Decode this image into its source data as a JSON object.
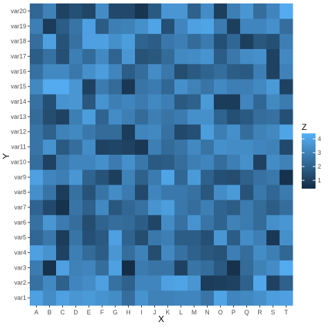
{
  "chart_data": {
    "type": "heatmap",
    "title": "",
    "xlabel": "X",
    "ylabel": "Y",
    "x": [
      "A",
      "B",
      "C",
      "D",
      "E",
      "F",
      "G",
      "H",
      "I",
      "J",
      "K",
      "L",
      "M",
      "N",
      "O",
      "P",
      "Q",
      "R",
      "S",
      "T"
    ],
    "y": [
      "var1",
      "var2",
      "var3",
      "var4",
      "var5",
      "var6",
      "var7",
      "var8",
      "var9",
      "var10",
      "var11",
      "var12",
      "var13",
      "var14",
      "var15",
      "var16",
      "var17",
      "var18",
      "var19",
      "var20"
    ],
    "z": [
      [
        3.9,
        3.3,
        3.9,
        3.6,
        3.7,
        3.5,
        3.3,
        2.4,
        3.5,
        3.0,
        3.0,
        3.1,
        3.1,
        2.6,
        4.0,
        3.1,
        3.2,
        3.4,
        3.8,
        3.9
      ],
      [
        2.5,
        3.2,
        2.0,
        3.1,
        3.3,
        3.9,
        2.5,
        2.0,
        3.1,
        3.1,
        3.9,
        4.0,
        3.6,
        0.9,
        1.0,
        1.1,
        2.0,
        4.1,
        1.1,
        2.0
      ],
      [
        2.8,
        0.6,
        3.9,
        3.0,
        3.1,
        2.4,
        3.9,
        0.5,
        2.8,
        2.6,
        2.6,
        1.1,
        2.6,
        2.4,
        1.8,
        0.6,
        2.3,
        3.0,
        3.3,
        4.2
      ],
      [
        3.9,
        3.5,
        1.1,
        2.9,
        2.3,
        1.9,
        3.6,
        2.4,
        3.0,
        1.4,
        3.2,
        2.5,
        2.0,
        1.7,
        1.6,
        2.9,
        2.4,
        3.3,
        2.9,
        2.2
      ],
      [
        2.2,
        2.7,
        0.9,
        2.6,
        1.5,
        1.8,
        3.9,
        2.1,
        1.4,
        2.7,
        2.9,
        1.9,
        1.9,
        1.5,
        3.6,
        1.9,
        3.3,
        2.9,
        0.8,
        3.4
      ],
      [
        2.5,
        3.6,
        2.8,
        2.4,
        1.4,
        2.1,
        2.4,
        2.3,
        1.9,
        1.2,
        3.3,
        2.5,
        3.5,
        2.6,
        2.1,
        3.0,
        2.8,
        2.3,
        3.4,
        3.6
      ],
      [
        2.1,
        1.3,
        0.6,
        2.6,
        2.0,
        3.2,
        1.7,
        2.2,
        2.5,
        3.5,
        3.8,
        2.7,
        2.4,
        2.9,
        2.1,
        1.9,
        2.8,
        2.3,
        1.9,
        2.4
      ],
      [
        3.4,
        2.6,
        0.9,
        2.5,
        1.6,
        2.6,
        3.3,
        2.8,
        1.3,
        3.1,
        2.7,
        2.7,
        2.5,
        1.7,
        3.3,
        3.7,
        1.6,
        2.7,
        2.2,
        2.8
      ],
      [
        3.9,
        3.1,
        2.9,
        3.6,
        2.1,
        1.6,
        1.0,
        3.0,
        2.0,
        2.8,
        4.0,
        2.2,
        3.7,
        2.0,
        1.5,
        1.4,
        2.0,
        2.5,
        2.7,
        0.6
      ],
      [
        2.4,
        1.1,
        2.7,
        3.1,
        3.1,
        3.4,
        2.8,
        3.4,
        2.7,
        1.8,
        1.9,
        2.4,
        2.9,
        3.1,
        2.4,
        2.9,
        3.4,
        1.1,
        3.3,
        3.0
      ],
      [
        2.6,
        3.5,
        1.8,
        2.4,
        3.3,
        1.1,
        1.2,
        1.1,
        0.8,
        2.9,
        2.3,
        2.6,
        3.2,
        2.6,
        3.4,
        3.3,
        3.3,
        3.1,
        3.0,
        1.3
      ],
      [
        2.6,
        2.0,
        3.0,
        3.2,
        2.7,
        2.3,
        2.3,
        0.9,
        3.1,
        3.2,
        2.5,
        1.3,
        1.5,
        3.8,
        2.9,
        3.4,
        2.4,
        3.0,
        3.2,
        4.0
      ],
      [
        2.3,
        1.4,
        1.1,
        2.9,
        3.8,
        2.1,
        3.3,
        2.9,
        2.3,
        2.9,
        2.6,
        2.8,
        3.4,
        3.4,
        2.1,
        1.5,
        1.8,
        2.4,
        2.5,
        1.5
      ],
      [
        2.5,
        1.5,
        3.5,
        3.6,
        1.7,
        3.5,
        2.9,
        3.1,
        2.8,
        3.2,
        2.9,
        1.8,
        2.0,
        3.7,
        0.9,
        0.9,
        3.1,
        2.2,
        3.2,
        2.8
      ],
      [
        3.2,
        4.2,
        4.2,
        3.6,
        1.1,
        2.8,
        2.3,
        0.8,
        2.6,
        2.8,
        2.2,
        3.4,
        3.0,
        2.6,
        3.2,
        2.9,
        2.9,
        3.2,
        3.7,
        1.1
      ],
      [
        2.5,
        3.2,
        3.2,
        2.7,
        3.4,
        3.8,
        3.1,
        1.9,
        2.4,
        3.3,
        2.7,
        1.4,
        1.8,
        2.1,
        2.4,
        1.9,
        1.8,
        2.9,
        1.1,
        3.0
      ],
      [
        1.9,
        2.5,
        1.5,
        2.9,
        2.3,
        3.2,
        2.1,
        3.6,
        1.6,
        1.7,
        2.3,
        3.2,
        3.3,
        3.5,
        1.9,
        2.7,
        3.3,
        3.4,
        1.1,
        3.2
      ],
      [
        2.4,
        3.9,
        1.6,
        2.5,
        3.9,
        3.9,
        3.4,
        3.8,
        2.1,
        1.9,
        2.7,
        2.9,
        2.3,
        2.8,
        1.5,
        2.2,
        1.0,
        1.7,
        1.5,
        2.9
      ],
      [
        2.9,
        0.9,
        1.9,
        2.6,
        3.9,
        1.9,
        2.9,
        3.0,
        3.4,
        4.0,
        1.5,
        3.1,
        3.9,
        4.0,
        2.8,
        1.0,
        3.1,
        3.1,
        3.4,
        2.4
      ],
      [
        2.2,
        3.0,
        1.1,
        1.5,
        1.2,
        3.3,
        1.3,
        1.3,
        0.7,
        1.8,
        3.6,
        3.6,
        2.0,
        3.3,
        1.0,
        2.9,
        3.6,
        2.4,
        3.1,
        4.2
      ]
    ],
    "zlim": [
      0.4,
      4.4
    ],
    "color_low": "#132B43",
    "color_high": "#56B1F7",
    "panel_bg": "#EBEBEB",
    "legend": {
      "title": "Z",
      "ticks": [
        1,
        2,
        3,
        4
      ],
      "position": "right"
    },
    "grid": false
  }
}
